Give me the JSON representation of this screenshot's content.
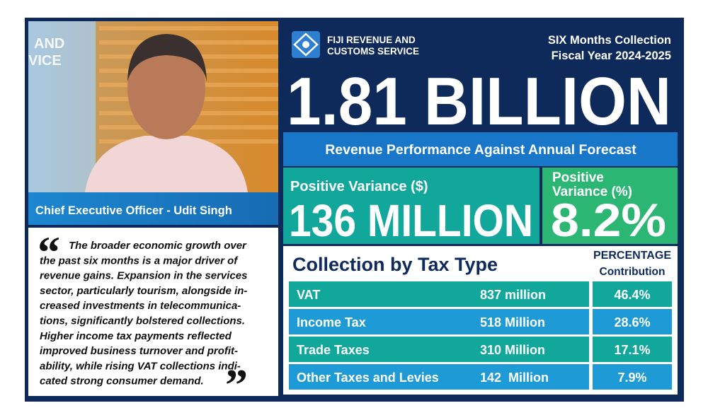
{
  "photo": {
    "sign_lines": [
      "AND",
      "VICE"
    ]
  },
  "caption": "Chief Executive Officer - Udit Singh",
  "quote": {
    "lines": [
      "The broader economic growth over",
      "the past six months is a major driver of",
      "revenue gains. Expansion in the services",
      "sector, particularly tourism, alongside in-",
      "creased investments in telecommunica-",
      "tions, significantly bolstered collections.",
      "Higher income tax payments reflected",
      "improved business turnover and profit-",
      "ability, while rising VAT collections indi-",
      "cated strong consumer demand."
    ]
  },
  "header": {
    "logo_lines": [
      "FIJI REVENUE AND",
      "CUSTOMS SERVICE"
    ],
    "period_lines": [
      "SIX Months Collection",
      "Fiscal Year 2024-2025"
    ],
    "total": "1.81 BILLION"
  },
  "banner": "Revenue Performance Against Annual Forecast",
  "variance_amount": {
    "label": "Positive Variance ($)",
    "value": "136 MILLION"
  },
  "variance_percent": {
    "label_lines": [
      "Positive",
      "Variance (%)"
    ],
    "value": "8.2%"
  },
  "table": {
    "title": "Collection by Tax Type",
    "percent_header": [
      "PERCENTAGE",
      "Contribution"
    ],
    "rows": [
      [
        "VAT",
        "837 million",
        "46.4%"
      ],
      [
        "Income Tax",
        "518 Million",
        "28.6%"
      ],
      [
        "Trade Taxes",
        "310 Million",
        "17.1%"
      ],
      [
        "Other Taxes and Levies",
        "142  Million",
        "7.9%"
      ]
    ]
  }
}
